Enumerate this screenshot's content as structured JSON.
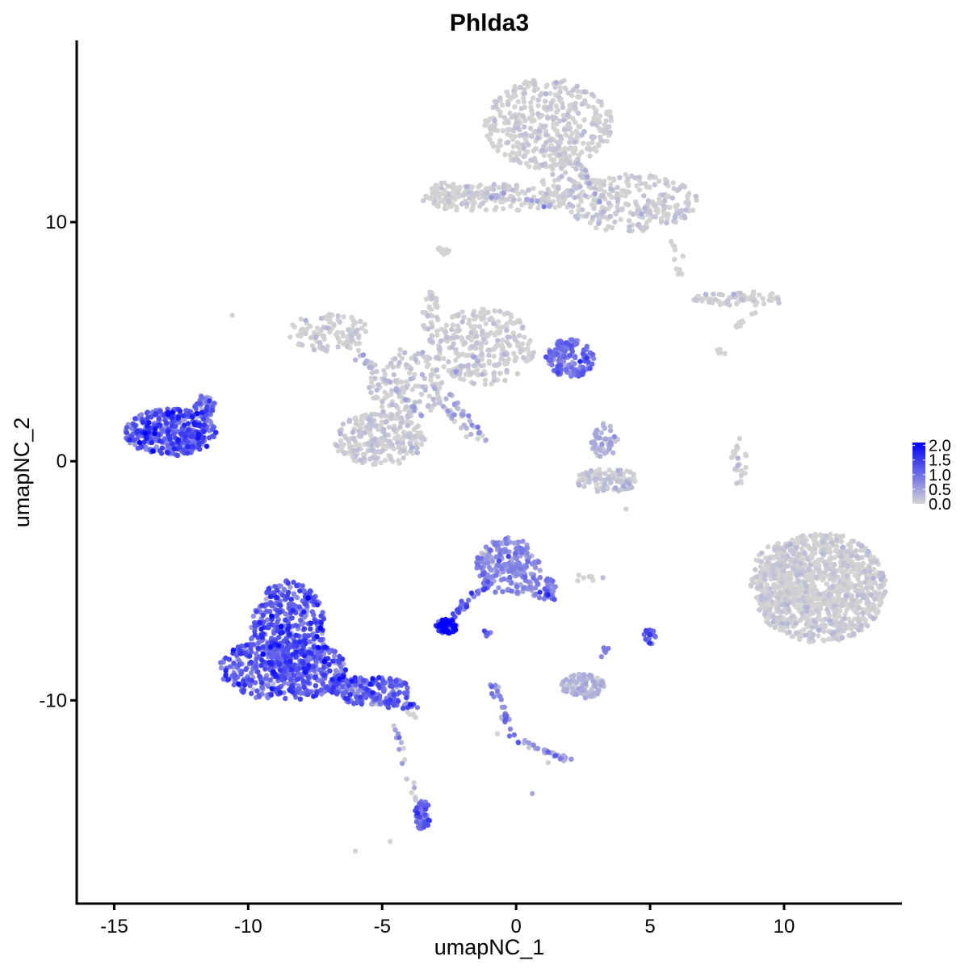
{
  "chart_data": {
    "type": "scatter",
    "title": "Phlda3",
    "xlabel": "umapNC_1",
    "ylabel": "umapNC_2",
    "xlim": [
      -16.4,
      14.4
    ],
    "ylim": [
      -18.5,
      17.6
    ],
    "xticks": [
      -15,
      -10,
      -5,
      0,
      5,
      10
    ],
    "xtick_labels": [
      "-15",
      "-10",
      "-5",
      "0",
      "5",
      "10"
    ],
    "yticks": [
      -10,
      0,
      10
    ],
    "ytick_labels": [
      "-10",
      "0",
      "10"
    ],
    "grid": false,
    "legend": {
      "position": "right",
      "type": "colorbar",
      "range": [
        0,
        2.1
      ],
      "breaks": [
        0.0,
        0.5,
        1.0,
        1.5,
        2.0
      ],
      "labels": [
        "0.0",
        "0.5",
        "1.0",
        "1.5",
        "2.0"
      ],
      "low_color": "#d3d3d3",
      "high_color": "#0000ff"
    },
    "colors": {
      "low": "#d3d3d3",
      "high": "#0000ff"
    },
    "clusters": [
      {
        "cx": 1.2,
        "cy": 14.1,
        "rx": 2.4,
        "ry": 1.9,
        "n": 420,
        "expr": 0.05
      },
      {
        "cx": 4.2,
        "cy": 10.8,
        "rx": 2.6,
        "ry": 1.2,
        "n": 260,
        "expr": 0.08
      },
      {
        "cx": -0.9,
        "cy": 11.0,
        "rx": 2.6,
        "ry": 0.6,
        "n": 140,
        "expr": 0.04
      },
      {
        "cx": -2.3,
        "cy": 11.2,
        "rx": 1.0,
        "ry": 0.6,
        "n": 50,
        "expr": 0.03
      },
      {
        "cx": 1.8,
        "cy": 12.0,
        "rx": 0.9,
        "ry": 1.0,
        "n": 60,
        "expr": 0.06
      },
      {
        "cx": -2.8,
        "cy": 8.8,
        "rx": 0.3,
        "ry": 0.25,
        "n": 12,
        "expr": 0.0
      },
      {
        "cx": 8.5,
        "cy": 6.8,
        "rx": 1.9,
        "ry": 0.3,
        "n": 70,
        "expr": 0.07
      },
      {
        "cx": -7.0,
        "cy": 5.4,
        "rx": 1.5,
        "ry": 0.8,
        "n": 110,
        "expr": 0.05
      },
      {
        "cx": -1.2,
        "cy": 4.8,
        "rx": 1.9,
        "ry": 1.6,
        "n": 260,
        "expr": 0.06
      },
      {
        "cx": 2.0,
        "cy": 4.3,
        "rx": 0.9,
        "ry": 0.8,
        "n": 150,
        "expr": 0.9
      },
      {
        "cx": -4.1,
        "cy": 3.2,
        "rx": 1.4,
        "ry": 1.5,
        "n": 150,
        "expr": 0.12
      },
      {
        "cx": -5.1,
        "cy": 0.9,
        "rx": 1.7,
        "ry": 1.1,
        "n": 240,
        "expr": 0.08
      },
      {
        "cx": -3.2,
        "cy": 6.0,
        "rx": 0.3,
        "ry": 1.2,
        "n": 40,
        "expr": 0.03
      },
      {
        "cx": -12.9,
        "cy": 1.2,
        "rx": 1.7,
        "ry": 1.0,
        "n": 380,
        "expr": 1.15
      },
      {
        "cx": -11.6,
        "cy": 2.3,
        "rx": 0.4,
        "ry": 0.5,
        "n": 40,
        "expr": 1.0
      },
      {
        "cx": 3.3,
        "cy": 0.8,
        "rx": 0.5,
        "ry": 0.8,
        "n": 45,
        "expr": 0.35
      },
      {
        "cx": 3.4,
        "cy": -0.8,
        "rx": 1.2,
        "ry": 0.5,
        "n": 100,
        "expr": 0.15
      },
      {
        "cx": 8.3,
        "cy": 0.0,
        "rx": 0.3,
        "ry": 1.0,
        "n": 25,
        "expr": 0.02
      },
      {
        "cx": 11.4,
        "cy": -5.3,
        "rx": 2.4,
        "ry": 2.3,
        "n": 950,
        "expr": 0.04
      },
      {
        "cx": 9.9,
        "cy": -5.2,
        "rx": 1.2,
        "ry": 1.8,
        "n": 180,
        "expr": 0.03
      },
      {
        "cx": -0.3,
        "cy": -4.4,
        "rx": 1.2,
        "ry": 1.2,
        "n": 210,
        "expr": 0.65
      },
      {
        "cx": 1.0,
        "cy": -5.3,
        "rx": 0.5,
        "ry": 0.5,
        "n": 40,
        "expr": 0.7
      },
      {
        "cx": -2.6,
        "cy": -6.9,
        "rx": 0.4,
        "ry": 0.3,
        "n": 70,
        "expr": 1.75
      },
      {
        "cx": -8.5,
        "cy": -7.1,
        "rx": 1.4,
        "ry": 2.1,
        "n": 420,
        "expr": 1.1
      },
      {
        "cx": -8.7,
        "cy": -8.7,
        "rx": 2.4,
        "ry": 1.3,
        "n": 450,
        "expr": 1.05
      },
      {
        "cx": -5.4,
        "cy": -9.6,
        "rx": 1.5,
        "ry": 0.6,
        "n": 170,
        "expr": 1.0
      },
      {
        "cx": 2.5,
        "cy": -9.4,
        "rx": 0.8,
        "ry": 0.5,
        "n": 100,
        "expr": 0.3
      },
      {
        "cx": 5.0,
        "cy": -7.3,
        "rx": 0.25,
        "ry": 0.35,
        "n": 22,
        "expr": 1.0
      },
      {
        "cx": -3.5,
        "cy": -14.8,
        "rx": 0.3,
        "ry": 0.6,
        "n": 55,
        "expr": 1.0
      }
    ],
    "trails": [
      {
        "x0": -6.2,
        "y0": 4.9,
        "x1": -3.6,
        "y1": 2.0,
        "n": 35,
        "expr": 0.1
      },
      {
        "x0": -2.6,
        "y0": 2.8,
        "x1": -1.1,
        "y1": 0.8,
        "n": 28,
        "expr": 0.3
      },
      {
        "x0": -3.0,
        "y0": 2.6,
        "x1": -1.7,
        "y1": 1.1,
        "n": 20,
        "expr": 0.2
      },
      {
        "x0": -2.5,
        "y0": 3.6,
        "x1": -1.0,
        "y1": 4.6,
        "n": 22,
        "expr": 0.08
      },
      {
        "x0": -1.5,
        "y0": 11.2,
        "x1": 1.4,
        "y1": 10.7,
        "n": 35,
        "expr": 0.05
      },
      {
        "x0": 2.5,
        "y0": 12.2,
        "x1": 3.4,
        "y1": 10.2,
        "n": 25,
        "expr": 0.05
      },
      {
        "x0": 5.8,
        "y0": 9.6,
        "x1": 6.1,
        "y1": 7.8,
        "n": 10,
        "expr": 0.0
      },
      {
        "x0": 8.9,
        "y0": 6.3,
        "x1": 8.2,
        "y1": 5.6,
        "n": 10,
        "expr": 0.0
      },
      {
        "x0": 7.4,
        "y0": 4.8,
        "x1": 7.8,
        "y1": 4.4,
        "n": 6,
        "expr": 0.0
      },
      {
        "x0": -0.9,
        "y0": -5.0,
        "x1": -2.4,
        "y1": -6.6,
        "n": 35,
        "expr": 1.0
      },
      {
        "x0": 1.1,
        "y0": -5.2,
        "x1": 1.3,
        "y1": -5.8,
        "n": 10,
        "expr": 1.2
      },
      {
        "x0": -5.0,
        "y0": -10.1,
        "x1": -3.6,
        "y1": -10.3,
        "n": 25,
        "expr": 1.1
      },
      {
        "x0": -4.5,
        "y0": -11.0,
        "x1": -3.6,
        "y1": -14.8,
        "n": 18,
        "expr": 0.3
      },
      {
        "x0": -0.8,
        "y0": -9.3,
        "x1": -0.1,
        "y1": -11.8,
        "n": 30,
        "expr": 0.7
      },
      {
        "x0": -0.1,
        "y0": -11.6,
        "x1": 2.2,
        "y1": -12.6,
        "n": 30,
        "expr": 0.4
      },
      {
        "x0": 3.4,
        "y0": -7.6,
        "x1": 3.3,
        "y1": -8.2,
        "n": 6,
        "expr": 0.8
      },
      {
        "x0": 2.4,
        "y0": -4.9,
        "x1": 3.2,
        "y1": -4.8,
        "n": 6,
        "expr": 0.05
      },
      {
        "x0": -1.3,
        "y0": -7.1,
        "x1": -0.9,
        "y1": -7.4,
        "n": 6,
        "expr": 1.0
      },
      {
        "x0": -3.6,
        "y0": -10.8,
        "x1": -4.2,
        "y1": -10.4,
        "n": 5,
        "expr": 0.0
      }
    ],
    "points": [
      {
        "x": -10.6,
        "y": 6.1,
        "expr": 0.0
      },
      {
        "x": -6.0,
        "y": -16.3,
        "expr": 0.0
      },
      {
        "x": -4.7,
        "y": -15.9,
        "expr": 0.0
      },
      {
        "x": 0.6,
        "y": -13.9,
        "expr": 0.4
      },
      {
        "x": 4.1,
        "y": -2.0,
        "expr": 0.0
      },
      {
        "x": 6.8,
        "y": 6.9,
        "expr": 0.0
      },
      {
        "x": 1.2,
        "y": -12.6,
        "expr": 0.0
      },
      {
        "x": -0.7,
        "y": -11.4,
        "expr": 0.0
      },
      {
        "x": 2.3,
        "y": -5.0,
        "expr": 0.0
      }
    ]
  }
}
